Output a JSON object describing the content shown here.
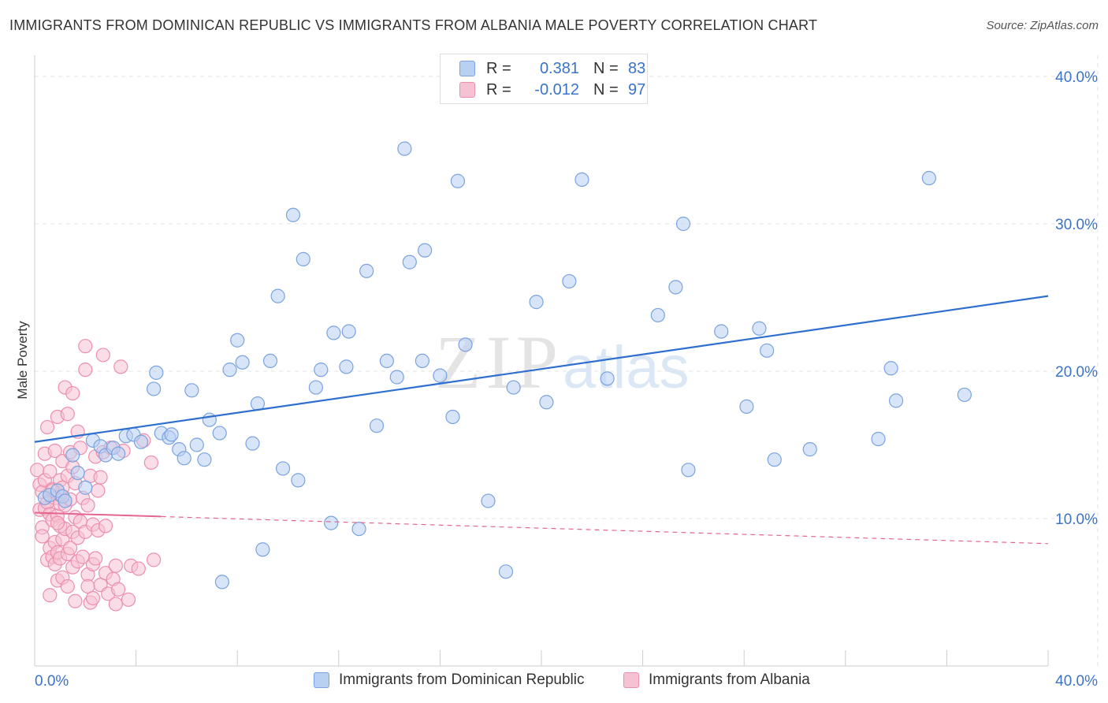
{
  "header": {
    "title": "IMMIGRANTS FROM DOMINICAN REPUBLIC VS IMMIGRANTS FROM ALBANIA MALE POVERTY CORRELATION CHART",
    "source": "Source: ZipAtlas.com"
  },
  "legend": {
    "r_label": "R =",
    "n_label": "N =",
    "rows": [
      {
        "r": "0.381",
        "n": "83"
      },
      {
        "r": "-0.012",
        "n": "97"
      }
    ]
  },
  "watermark": {
    "zip": "ZIP",
    "atlas": "atlas"
  },
  "colors": {
    "blue_fill": "#b8d0f2",
    "blue_stroke": "#7aa3df",
    "blue_line": "#2f6fd0",
    "pink_fill": "#f6c1d2",
    "pink_stroke": "#ec8fae",
    "pink_line": "#e4668f",
    "axis_text": "#3a73c9"
  },
  "chart_data": {
    "type": "scatter",
    "title": "IMMIGRANTS FROM DOMINICAN REPUBLIC VS IMMIGRANTS FROM ALBANIA MALE POVERTY CORRELATION CHART",
    "xlabel": "",
    "ylabel": "Male Poverty",
    "xlim": [
      0,
      40
    ],
    "ylim": [
      0,
      42
    ],
    "x_tick_labels": [
      "0.0%",
      "40.0%"
    ],
    "y_ticks": [
      10,
      20,
      30,
      40
    ],
    "y_tick_labels": [
      "10.0%",
      "20.0%",
      "30.0%",
      "40.0%"
    ],
    "grid": true,
    "legend_position": "top-center",
    "series": [
      {
        "name": "Immigrants from Dominican Republic",
        "color": "#b8d0f2",
        "r": 0.381,
        "n": 83,
        "trend": {
          "x": [
            0,
            40
          ],
          "y": [
            15.2,
            25.1
          ]
        },
        "points": [
          [
            0.4,
            11.4
          ],
          [
            0.6,
            11.6
          ],
          [
            0.9,
            11.9
          ],
          [
            1.1,
            11.5
          ],
          [
            1.2,
            11.2
          ],
          [
            1.5,
            14.3
          ],
          [
            1.7,
            13.1
          ],
          [
            2.0,
            12.1
          ],
          [
            2.3,
            15.3
          ],
          [
            2.6,
            14.9
          ],
          [
            2.8,
            14.3
          ],
          [
            3.1,
            14.8
          ],
          [
            3.3,
            14.4
          ],
          [
            3.6,
            15.6
          ],
          [
            3.9,
            15.7
          ],
          [
            4.2,
            15.2
          ],
          [
            4.7,
            18.8
          ],
          [
            4.8,
            19.9
          ],
          [
            5.0,
            15.8
          ],
          [
            5.3,
            15.5
          ],
          [
            5.4,
            15.7
          ],
          [
            5.7,
            14.7
          ],
          [
            5.9,
            14.1
          ],
          [
            6.2,
            18.7
          ],
          [
            6.4,
            15.0
          ],
          [
            6.7,
            14.0
          ],
          [
            6.9,
            16.7
          ],
          [
            7.3,
            15.8
          ],
          [
            7.4,
            5.7
          ],
          [
            7.7,
            20.1
          ],
          [
            8.0,
            22.1
          ],
          [
            8.2,
            20.6
          ],
          [
            8.6,
            15.1
          ],
          [
            8.8,
            17.8
          ],
          [
            9.0,
            7.9
          ],
          [
            9.3,
            20.7
          ],
          [
            9.6,
            25.1
          ],
          [
            9.8,
            13.4
          ],
          [
            10.2,
            30.6
          ],
          [
            10.4,
            12.6
          ],
          [
            10.6,
            27.6
          ],
          [
            11.1,
            18.9
          ],
          [
            11.3,
            20.1
          ],
          [
            11.7,
            9.7
          ],
          [
            11.8,
            22.6
          ],
          [
            12.3,
            20.3
          ],
          [
            12.4,
            22.7
          ],
          [
            12.8,
            9.3
          ],
          [
            13.1,
            26.8
          ],
          [
            13.5,
            16.3
          ],
          [
            13.9,
            20.7
          ],
          [
            14.3,
            19.6
          ],
          [
            14.6,
            35.1
          ],
          [
            14.8,
            27.4
          ],
          [
            15.3,
            20.7
          ],
          [
            15.4,
            28.2
          ],
          [
            16.0,
            19.7
          ],
          [
            16.5,
            16.9
          ],
          [
            16.7,
            32.9
          ],
          [
            17.0,
            21.8
          ],
          [
            17.9,
            11.2
          ],
          [
            18.6,
            6.4
          ],
          [
            18.9,
            18.9
          ],
          [
            19.8,
            24.7
          ],
          [
            20.2,
            17.9
          ],
          [
            21.1,
            26.1
          ],
          [
            21.6,
            33.0
          ],
          [
            22.6,
            19.5
          ],
          [
            24.6,
            23.8
          ],
          [
            25.3,
            25.7
          ],
          [
            25.6,
            30.0
          ],
          [
            25.8,
            13.3
          ],
          [
            27.1,
            22.7
          ],
          [
            28.1,
            17.6
          ],
          [
            28.6,
            22.9
          ],
          [
            28.9,
            21.4
          ],
          [
            29.2,
            14.0
          ],
          [
            30.6,
            14.7
          ],
          [
            33.3,
            15.4
          ],
          [
            33.8,
            20.2
          ],
          [
            34.0,
            18.0
          ],
          [
            35.3,
            33.1
          ],
          [
            36.7,
            18.4
          ]
        ]
      },
      {
        "name": "Immigrants from Albania",
        "color": "#f6c1d2",
        "r": -0.012,
        "n": 97,
        "trend": {
          "x": [
            0,
            40
          ],
          "y": [
            10.4,
            8.3
          ],
          "solid_until_x": 5.0
        },
        "points": [
          [
            0.1,
            13.3
          ],
          [
            0.2,
            10.6
          ],
          [
            0.2,
            12.3
          ],
          [
            0.3,
            9.4
          ],
          [
            0.3,
            8.8
          ],
          [
            0.3,
            11.8
          ],
          [
            0.4,
            14.4
          ],
          [
            0.4,
            12.6
          ],
          [
            0.4,
            10.7
          ],
          [
            0.5,
            16.2
          ],
          [
            0.5,
            7.2
          ],
          [
            0.5,
            11.1
          ],
          [
            0.6,
            13.2
          ],
          [
            0.6,
            8.0
          ],
          [
            0.6,
            10.3
          ],
          [
            0.6,
            4.8
          ],
          [
            0.7,
            12.0
          ],
          [
            0.7,
            7.4
          ],
          [
            0.7,
            9.9
          ],
          [
            0.8,
            11.4
          ],
          [
            0.8,
            8.4
          ],
          [
            0.8,
            6.9
          ],
          [
            0.8,
            14.6
          ],
          [
            0.9,
            16.9
          ],
          [
            0.9,
            7.7
          ],
          [
            0.9,
            10.2
          ],
          [
            0.9,
            5.8
          ],
          [
            1.0,
            12.6
          ],
          [
            1.0,
            9.5
          ],
          [
            1.0,
            7.3
          ],
          [
            1.0,
            11.0
          ],
          [
            1.1,
            13.9
          ],
          [
            1.1,
            8.6
          ],
          [
            1.1,
            6.0
          ],
          [
            1.2,
            18.9
          ],
          [
            1.2,
            10.9
          ],
          [
            1.2,
            9.3
          ],
          [
            1.3,
            12.9
          ],
          [
            1.3,
            7.6
          ],
          [
            1.3,
            5.4
          ],
          [
            1.3,
            17.1
          ],
          [
            1.4,
            14.5
          ],
          [
            1.4,
            11.3
          ],
          [
            1.4,
            8.0
          ],
          [
            1.5,
            18.5
          ],
          [
            1.5,
            9.1
          ],
          [
            1.5,
            6.7
          ],
          [
            1.6,
            12.4
          ],
          [
            1.6,
            10.1
          ],
          [
            1.6,
            4.4
          ],
          [
            1.7,
            15.9
          ],
          [
            1.7,
            8.7
          ],
          [
            1.7,
            7.1
          ],
          [
            1.8,
            14.8
          ],
          [
            1.8,
            9.8
          ],
          [
            1.9,
            11.4
          ],
          [
            1.9,
            7.4
          ],
          [
            2.0,
            21.7
          ],
          [
            2.0,
            20.1
          ],
          [
            2.0,
            9.1
          ],
          [
            2.1,
            6.2
          ],
          [
            2.1,
            10.9
          ],
          [
            2.1,
            5.4
          ],
          [
            2.2,
            12.9
          ],
          [
            2.2,
            4.3
          ],
          [
            2.3,
            9.6
          ],
          [
            2.3,
            6.9
          ],
          [
            2.3,
            4.6
          ],
          [
            2.4,
            14.2
          ],
          [
            2.4,
            7.3
          ],
          [
            2.5,
            11.9
          ],
          [
            2.5,
            9.2
          ],
          [
            2.6,
            5.5
          ],
          [
            2.6,
            12.8
          ],
          [
            2.7,
            21.1
          ],
          [
            2.7,
            14.5
          ],
          [
            2.8,
            9.5
          ],
          [
            2.8,
            6.3
          ],
          [
            2.9,
            4.9
          ],
          [
            3.0,
            14.8
          ],
          [
            3.1,
            5.9
          ],
          [
            3.2,
            6.8
          ],
          [
            3.2,
            4.2
          ],
          [
            3.3,
            5.2
          ],
          [
            3.4,
            20.3
          ],
          [
            3.5,
            14.6
          ],
          [
            3.7,
            4.5
          ],
          [
            3.8,
            6.8
          ],
          [
            4.1,
            6.6
          ],
          [
            4.3,
            15.3
          ],
          [
            4.6,
            13.8
          ],
          [
            4.7,
            7.2
          ],
          [
            1.0,
            11.6
          ],
          [
            0.9,
            9.7
          ],
          [
            1.1,
            12.1
          ],
          [
            0.7,
            11.9
          ],
          [
            1.5,
            13.5
          ]
        ]
      }
    ]
  },
  "bottom_legend": [
    {
      "label": "Immigrants from Dominican Republic"
    },
    {
      "label": "Immigrants from Albania"
    }
  ]
}
